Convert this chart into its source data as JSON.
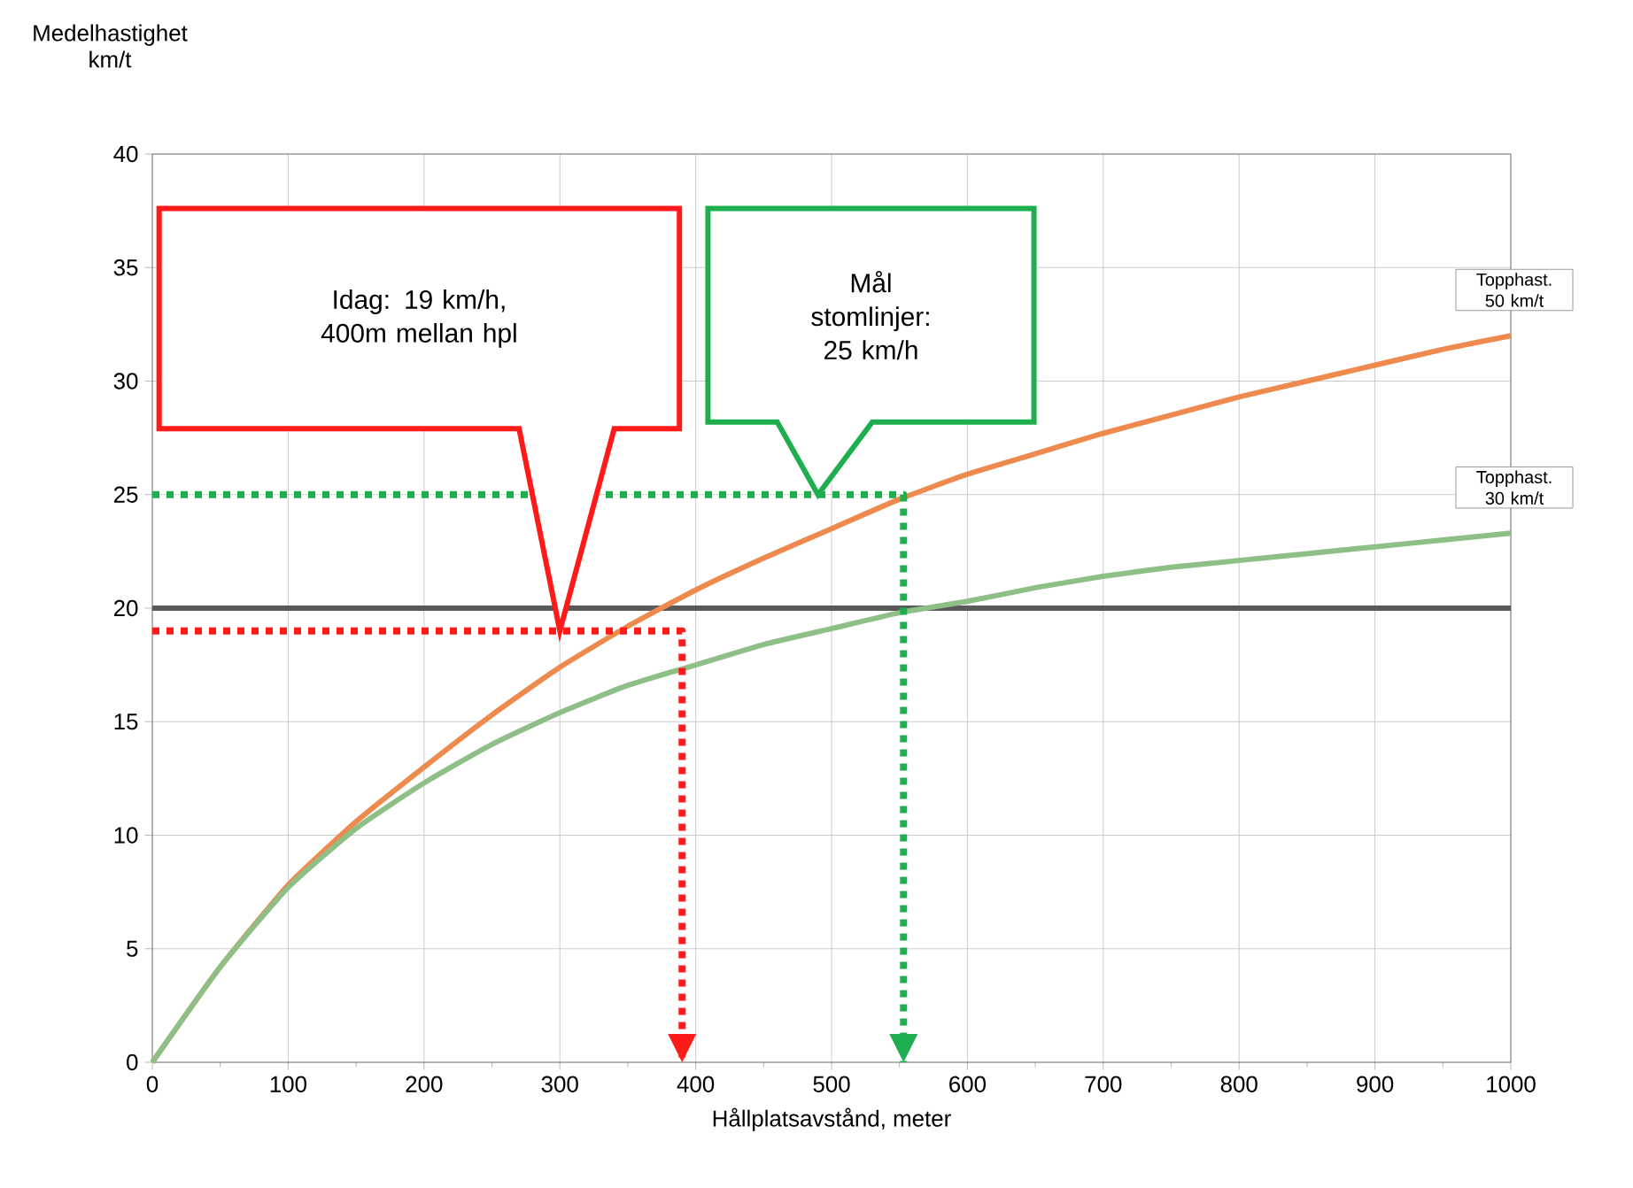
{
  "chart_data": {
    "type": "line",
    "xlabel": "Hållplatsavstånd, meter",
    "ylabel": "Medelhastighet km/t",
    "x": [
      0,
      50,
      100,
      150,
      200,
      250,
      300,
      350,
      400,
      450,
      500,
      550,
      600,
      650,
      700,
      750,
      800,
      850,
      900,
      950,
      1000
    ],
    "series": [
      {
        "name": "Topphast. 50 km/t",
        "color": "#ef8a4f",
        "values": [
          0,
          4.2,
          7.8,
          10.6,
          13.0,
          15.3,
          17.4,
          19.2,
          20.8,
          22.2,
          23.5,
          24.8,
          25.9,
          26.8,
          27.7,
          28.5,
          29.3,
          30.0,
          30.7,
          31.4,
          32.0
        ]
      },
      {
        "name": "Topphast. 30 km/t",
        "color": "#8dbf87",
        "values": [
          0,
          4.2,
          7.7,
          10.3,
          12.3,
          14.0,
          15.4,
          16.6,
          17.5,
          18.4,
          19.1,
          19.8,
          20.3,
          20.9,
          21.4,
          21.8,
          22.1,
          22.4,
          22.7,
          23.0,
          23.3
        ]
      },
      {
        "type": "line",
        "line_style": "dotted",
        "color": "#ff1a1a",
        "x": [
          0,
          390,
          390
        ],
        "values": [
          19,
          19,
          0
        ]
      },
      {
        "type": "line",
        "line_style": "dotted",
        "color": "#1fae4f",
        "x": [
          0,
          553,
          553
        ],
        "values": [
          25,
          25,
          0
        ]
      }
    ],
    "ref_lines": [
      {
        "axis": "y",
        "value": 20,
        "color": "#595959"
      }
    ],
    "annotations": [
      "Idag: 19 km/h, 400m mellan hpl",
      "Mål stomlinjer: 25 km/h"
    ],
    "xlim": [
      0,
      1000
    ],
    "ylim": [
      0,
      40
    ],
    "xticks": [
      0,
      100,
      200,
      300,
      400,
      500,
      600,
      700,
      800,
      900,
      1000
    ],
    "yticks": [
      0,
      5,
      10,
      15,
      20,
      25,
      30,
      35,
      40
    ],
    "grid": true
  }
}
